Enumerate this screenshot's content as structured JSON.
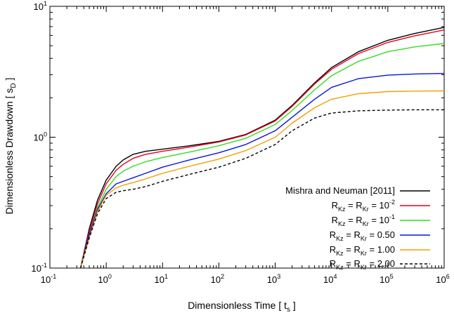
{
  "chart_data": {
    "type": "line",
    "xlabel": "Dimensionless Time [ t",
    "xlabel_sub": "s",
    "xlabel_end": " ]",
    "ylabel": "Dimensionless Drawdown [ s",
    "ylabel_sub": "D",
    "ylabel_end": " ]",
    "x_scale": "log",
    "y_scale": "log",
    "xlim": [
      0.1,
      1000000
    ],
    "ylim": [
      0.1,
      10
    ],
    "grid": false,
    "legend_position": "bottom-right",
    "x_ticks": [
      {
        "base": "10",
        "exp": "-1"
      },
      {
        "base": "10",
        "exp": "0"
      },
      {
        "base": "10",
        "exp": "1"
      },
      {
        "base": "10",
        "exp": "2"
      },
      {
        "base": "10",
        "exp": "3"
      },
      {
        "base": "10",
        "exp": "4"
      },
      {
        "base": "10",
        "exp": "5"
      },
      {
        "base": "10",
        "exp": "6"
      }
    ],
    "y_ticks": [
      {
        "base": "10",
        "exp": "-1"
      },
      {
        "base": "10",
        "exp": "0"
      },
      {
        "base": "10",
        "exp": "1"
      }
    ],
    "series": [
      {
        "name": "Mishra and Neuman [2011]",
        "color": "#000000",
        "dash": "solid",
        "x": [
          0.35,
          0.5,
          0.7,
          1,
          1.5,
          2,
          3,
          5,
          10,
          30,
          100,
          300,
          1000,
          2000,
          5000,
          10000,
          30000,
          100000,
          300000,
          1000000
        ],
        "y": [
          0.1,
          0.2,
          0.33,
          0.47,
          0.6,
          0.67,
          0.74,
          0.78,
          0.81,
          0.86,
          0.93,
          1.05,
          1.35,
          1.75,
          2.6,
          3.4,
          4.5,
          5.5,
          6.2,
          6.9
        ]
      },
      {
        "name_parts": [
          {
            "t": "R"
          },
          {
            "t": "Kz",
            "sub": true
          },
          {
            "t": " = R"
          },
          {
            "t": "Kr",
            "sub": true
          },
          {
            "t": " = 10"
          },
          {
            "t": "-2",
            "sup": true
          }
        ],
        "color": "#e8001c",
        "dash": "solid",
        "x": [
          0.35,
          0.5,
          0.7,
          1,
          1.5,
          2,
          3,
          5,
          10,
          30,
          100,
          300,
          1000,
          2000,
          5000,
          10000,
          30000,
          100000,
          300000,
          1000000
        ],
        "y": [
          0.1,
          0.19,
          0.31,
          0.44,
          0.56,
          0.62,
          0.69,
          0.74,
          0.78,
          0.84,
          0.92,
          1.04,
          1.33,
          1.72,
          2.55,
          3.3,
          4.35,
          5.3,
          5.95,
          6.6
        ]
      },
      {
        "name_parts": [
          {
            "t": "R"
          },
          {
            "t": "Kz",
            "sub": true
          },
          {
            "t": " = R"
          },
          {
            "t": "Kr",
            "sub": true
          },
          {
            "t": " = 10"
          },
          {
            "t": "-1",
            "sup": true
          }
        ],
        "color": "#33dd22",
        "dash": "solid",
        "x": [
          0.35,
          0.5,
          0.7,
          1,
          1.5,
          2,
          3,
          5,
          10,
          30,
          100,
          300,
          1000,
          2000,
          5000,
          10000,
          30000,
          100000,
          300000,
          1000000
        ],
        "y": [
          0.1,
          0.18,
          0.29,
          0.4,
          0.5,
          0.55,
          0.6,
          0.65,
          0.7,
          0.77,
          0.86,
          0.98,
          1.25,
          1.6,
          2.3,
          2.95,
          3.8,
          4.5,
          4.9,
          5.2
        ]
      },
      {
        "name_parts": [
          {
            "t": "R"
          },
          {
            "t": "Kz",
            "sub": true
          },
          {
            "t": " = R"
          },
          {
            "t": "Kr",
            "sub": true
          },
          {
            "t": " = 0.50"
          }
        ],
        "color": "#0a14dd",
        "dash": "solid",
        "x": [
          0.35,
          0.5,
          0.7,
          1,
          1.5,
          2,
          3,
          5,
          10,
          30,
          100,
          300,
          1000,
          2000,
          5000,
          10000,
          30000,
          100000,
          300000,
          1000000
        ],
        "y": [
          0.1,
          0.18,
          0.28,
          0.37,
          0.44,
          0.46,
          0.49,
          0.53,
          0.59,
          0.67,
          0.76,
          0.88,
          1.12,
          1.42,
          1.95,
          2.4,
          2.8,
          2.98,
          3.04,
          3.07
        ]
      },
      {
        "name_parts": [
          {
            "t": "R"
          },
          {
            "t": "Kz",
            "sub": true
          },
          {
            "t": " = R"
          },
          {
            "t": "Kr",
            "sub": true
          },
          {
            "t": " = 1.00"
          }
        ],
        "color": "#f5a000",
        "dash": "solid",
        "x": [
          0.35,
          0.5,
          0.7,
          1,
          1.5,
          2,
          3,
          5,
          10,
          30,
          100,
          300,
          1000,
          2000,
          5000,
          10000,
          30000,
          100000,
          300000,
          1000000
        ],
        "y": [
          0.1,
          0.17,
          0.27,
          0.36,
          0.41,
          0.43,
          0.45,
          0.48,
          0.53,
          0.6,
          0.68,
          0.79,
          1.0,
          1.28,
          1.68,
          1.95,
          2.15,
          2.23,
          2.25,
          2.26
        ]
      },
      {
        "name_parts": [
          {
            "t": "R"
          },
          {
            "t": "Kz",
            "sub": true
          },
          {
            "t": " = R"
          },
          {
            "t": "Kr",
            "sub": true
          },
          {
            "t": " = 2.00"
          }
        ],
        "color": "#000000",
        "dash": "dashed",
        "x": [
          0.35,
          0.5,
          0.7,
          1,
          1.5,
          2,
          3,
          5,
          10,
          30,
          100,
          300,
          1000,
          2000,
          5000,
          10000,
          30000,
          100000,
          300000,
          1000000
        ],
        "y": [
          0.1,
          0.17,
          0.26,
          0.34,
          0.38,
          0.39,
          0.4,
          0.42,
          0.46,
          0.52,
          0.59,
          0.69,
          0.88,
          1.12,
          1.4,
          1.53,
          1.59,
          1.61,
          1.62,
          1.62
        ]
      }
    ]
  }
}
